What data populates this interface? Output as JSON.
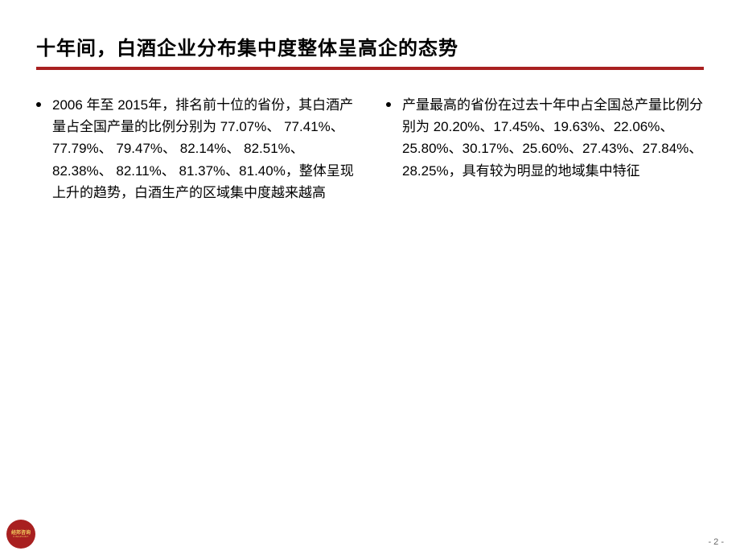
{
  "title": "十年间，白酒企业分布集中度整体呈高企的态势",
  "columns": [
    {
      "text": "2006 年至 2015年，排名前十位的省份，其白酒产量占全国产量的比例分别为 77.07%、 77.41%、 77.79%、 79.47%、 82.14%、 82.51%、 82.38%、 82.11%、 81.37%、81.40%，整体呈现上升的趋势，白酒生产的区域集中度越来越高"
    },
    {
      "text": "产量最高的省份在过去十年中占全国总产量比例分别为 20.20%、17.45%、19.63%、22.06%、25.80%、30.17%、25.60%、27.43%、27.84%、28.25%，具有较为明显的地域集中特征"
    }
  ],
  "logo": {
    "chinese": "经邦咨询",
    "english": "KINGPOINT"
  },
  "pageNumber": "- 2 -",
  "colors": {
    "accent": "#a82020",
    "text": "#000000",
    "background": "#ffffff",
    "logoGold": "#f4d060"
  }
}
